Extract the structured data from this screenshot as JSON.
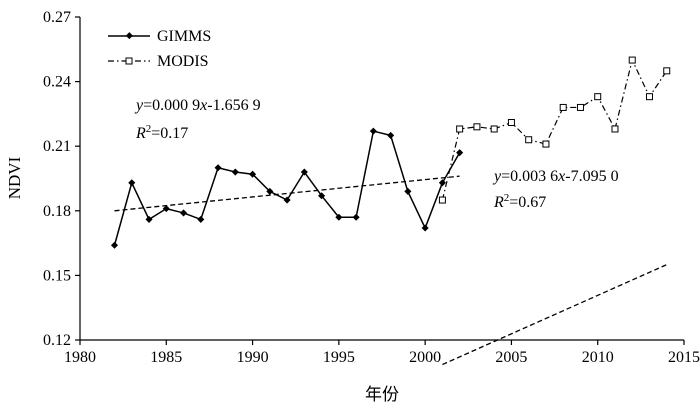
{
  "chart_data": {
    "type": "line",
    "title": "",
    "xlabel": "年份",
    "ylabel": "NDVI",
    "xlim": [
      1980,
      2015
    ],
    "ylim": [
      0.12,
      0.27
    ],
    "x_ticks": [
      "1980",
      "1985",
      "1990",
      "1995",
      "2000",
      "2005",
      "2010",
      "2015"
    ],
    "y_ticks": [
      "0.12",
      "0.15",
      "0.18",
      "0.21",
      "0.24",
      "0.27"
    ],
    "grid": false,
    "legend_position": "top-left",
    "series": [
      {
        "name": "GIMMS",
        "style": "solid line, filled diamond markers",
        "color": "#000000",
        "x": [
          1982,
          1983,
          1984,
          1985,
          1986,
          1987,
          1988,
          1989,
          1990,
          1991,
          1992,
          1993,
          1994,
          1995,
          1996,
          1997,
          1998,
          1999,
          2000,
          2001,
          2002
        ],
        "y": [
          0.164,
          0.193,
          0.176,
          0.181,
          0.179,
          0.176,
          0.2,
          0.198,
          0.197,
          0.189,
          0.185,
          0.198,
          0.187,
          0.177,
          0.177,
          0.217,
          0.215,
          0.189,
          0.172,
          0.193,
          0.207
        ]
      },
      {
        "name": "MODIS",
        "style": "dash-dot line, open square markers",
        "color": "#000000",
        "x": [
          2001,
          2002,
          2003,
          2004,
          2005,
          2006,
          2007,
          2008,
          2009,
          2010,
          2011,
          2012,
          2013,
          2014
        ],
        "y": [
          0.185,
          0.218,
          0.219,
          0.218,
          0.221,
          0.213,
          0.211,
          0.228,
          0.228,
          0.233,
          0.218,
          0.25,
          0.233,
          0.245
        ]
      }
    ],
    "trendlines": [
      {
        "series": "GIMMS",
        "x": [
          1982,
          2002
        ],
        "y": [
          0.18,
          0.1961
        ],
        "style": "dashed"
      },
      {
        "series": "MODIS",
        "x": [
          2001,
          2014
        ],
        "y": [
          0.1086,
          0.155
        ],
        "style": "dashed"
      }
    ],
    "annotations": [
      {
        "equation": {
          "var": "y",
          "body": "=0.000 9",
          "x_var": "x",
          "tail": "-1.656 9"
        },
        "r2": {
          "label": "R",
          "sup": "2",
          "value": "=0.17"
        }
      },
      {
        "equation": {
          "var": "y",
          "body": "=0.003 6",
          "x_var": "x",
          "tail": "-7.095 0"
        },
        "r2": {
          "label": "R",
          "sup": "2",
          "value": "=0.67"
        }
      }
    ]
  }
}
